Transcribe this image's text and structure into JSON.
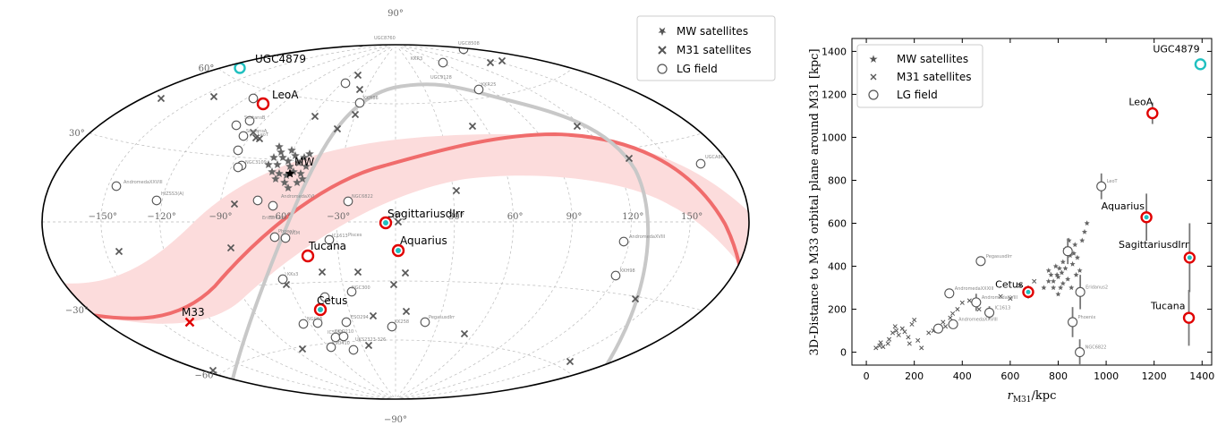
{
  "chart_data": [
    {
      "type": "scatter",
      "title": "",
      "projection": "aitoff",
      "lon_ticks": [
        "−150°",
        "−120°",
        "−90°",
        "−60°",
        "−30°",
        "0°",
        "30°",
        "60°",
        "90°",
        "120°",
        "150°"
      ],
      "lat_ticks": [
        "90°",
        "60°",
        "30°",
        "−30°",
        "−60°",
        "−90°"
      ],
      "lon_tick_values": [
        -150,
        -120,
        -90,
        -60,
        -30,
        0,
        30,
        60,
        90,
        120,
        150
      ],
      "lat_tick_values": [
        90,
        60,
        30,
        -30,
        -60,
        -90
      ],
      "legend": [
        "MW satellites",
        "M31 satellites",
        "LG field"
      ],
      "legend_position": "top-right",
      "grid": true,
      "colors": {
        "band_fill": "#fcdcdc",
        "band_line": "#f06c6c",
        "gray_arc": "#c8c8c8",
        "highlight_ring": "#e00000",
        "highlight_core": "#20c0c0",
        "teal_ring": "#20c0c0",
        "m33_marker": "#e00000",
        "markers": "#606060"
      },
      "labeled_objects": [
        {
          "name": "UGC4879",
          "lon": -107,
          "lat": 47
        },
        {
          "name": "LeoA",
          "lon": -83,
          "lat": 35
        },
        {
          "name": "MW",
          "lon": 0,
          "lat": 0
        },
        {
          "name": "SagittariusdIrr",
          "lon": 29,
          "lat": -2
        },
        {
          "name": "Aquarius",
          "lon": 33,
          "lat": -13
        },
        {
          "name": "Tucana",
          "lon": -10,
          "lat": -16
        },
        {
          "name": "Cetus",
          "lon": -1,
          "lat": -46
        },
        {
          "name": "M33",
          "lon": -156,
          "lat": -27
        }
      ],
      "field_labels": [
        {
          "name": "AndromedaXXVIII",
          "lon": -140,
          "lat": 14
        },
        {
          "name": "HIZSS3(A)",
          "lon": -114,
          "lat": 9
        },
        {
          "name": "SextansB",
          "lon": -95,
          "lat": 29
        },
        {
          "name": "SextansA",
          "lon": -90,
          "lat": 24
        },
        {
          "name": "LeoT",
          "lon": -83,
          "lat": 26
        },
        {
          "name": "NGC3109",
          "lon": -95,
          "lat": 13
        },
        {
          "name": "AndromedaXVI",
          "lon": -22,
          "lat": 2
        },
        {
          "name": "NGC6822",
          "lon": 10,
          "lat": 4
        },
        {
          "name": "Eridanus2",
          "lon": -64,
          "lat": 0
        },
        {
          "name": "Phoenix",
          "lon": -52,
          "lat": -8
        },
        {
          "name": "WLM",
          "lon": -49,
          "lat": -7
        },
        {
          "name": "IC1613",
          "lon": -31,
          "lat": -10
        },
        {
          "name": "Pisces",
          "lon": -20,
          "lat": -8
        },
        {
          "name": "KKs3",
          "lon": -46,
          "lat": -27
        },
        {
          "name": "KKR3",
          "lon": 38,
          "lat": 65
        },
        {
          "name": "UGC8508",
          "lon": 58,
          "lat": 71
        },
        {
          "name": "UGC9128",
          "lon": 51,
          "lat": 58
        },
        {
          "name": "KKR25",
          "lon": 63,
          "lat": 53
        },
        {
          "name": "KKH86",
          "lon": 16,
          "lat": 42
        },
        {
          "name": "UGC8760",
          "lon": -6,
          "lat": 65
        },
        {
          "name": "UGCA86",
          "lon": 146,
          "lat": 13
        },
        {
          "name": "AndromedaXVIII",
          "lon": 140,
          "lat": -3
        },
        {
          "name": "KKH98",
          "lon": 140,
          "lat": -17
        },
        {
          "name": "DDO210",
          "lon": -15,
          "lat": -50
        },
        {
          "name": "ESO410",
          "lon": -8,
          "lat": -63
        },
        {
          "name": "ESO294",
          "lon": -7,
          "lat": -56
        },
        {
          "name": "UKS2323-326",
          "lon": 6,
          "lat": -62
        },
        {
          "name": "KK258",
          "lon": 12,
          "lat": -57
        },
        {
          "name": "PegasusdIrr",
          "lon": 27,
          "lat": -57
        },
        {
          "name": "NGC55",
          "lon": -23,
          "lat": -56
        },
        {
          "name": "NGC300",
          "lon": -14,
          "lat": -39
        },
        {
          "name": "IC5152",
          "lon": -15,
          "lat": -59
        }
      ]
    },
    {
      "type": "scatter",
      "title": "",
      "xlabel": "r_M31/kpc",
      "ylabel": "3D-Distance to M33 orbital plane around M31 [kpc]",
      "xlim": [
        -60,
        1440
      ],
      "ylim": [
        -60,
        1460
      ],
      "xticks": [
        0,
        200,
        400,
        600,
        800,
        1000,
        1200,
        1400
      ],
      "yticks": [
        0,
        200,
        400,
        600,
        800,
        1000,
        1200,
        1400
      ],
      "legend": [
        "MW satellites",
        "M31 satellites",
        "LG field"
      ],
      "legend_position": "top-left",
      "grid": false,
      "labeled_points": [
        {
          "name": "UGC4879",
          "x": 1393,
          "y": 1340,
          "err": 0
        },
        {
          "name": "LeoA",
          "x": 1193,
          "y": 1112,
          "err": 50
        },
        {
          "name": "Aquarius",
          "x": 1168,
          "y": 628,
          "err": 110
        },
        {
          "name": "SagittariusdIrr",
          "x": 1348,
          "y": 440,
          "err": 160
        },
        {
          "name": "Tucana",
          "x": 1345,
          "y": 160,
          "err": 130
        },
        {
          "name": "Cetus",
          "x": 675,
          "y": 280,
          "err": 30
        }
      ],
      "field_labels": [
        {
          "name": "LeoT",
          "x": 980,
          "y": 772
        },
        {
          "name": "PegasusdIrr",
          "x": 477,
          "y": 424
        },
        {
          "name": "Eridanus2",
          "x": 892,
          "y": 280
        },
        {
          "name": "AndromedaXXXIII",
          "x": 346,
          "y": 274
        },
        {
          "name": "AndromedaXVIII",
          "x": 458,
          "y": 232
        },
        {
          "name": "IC1613",
          "x": 513,
          "y": 184
        },
        {
          "name": "AndromedaXXVIII",
          "x": 362,
          "y": 130
        },
        {
          "name": "Phoenix",
          "x": 860,
          "y": 140
        },
        {
          "name": "NGC6822",
          "x": 890,
          "y": 0
        }
      ]
    }
  ]
}
